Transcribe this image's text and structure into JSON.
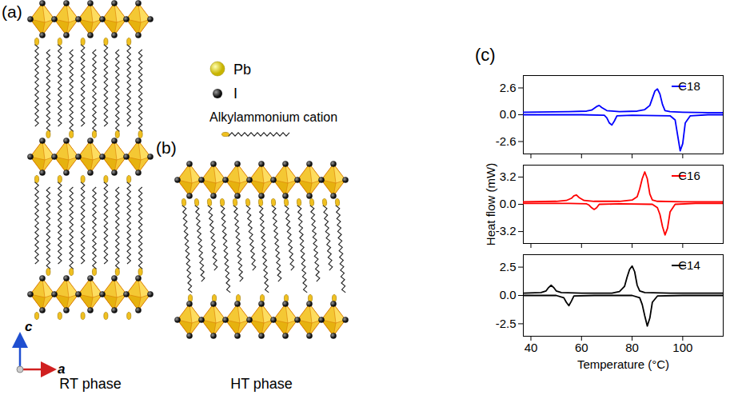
{
  "diagram": {
    "panels": [
      {
        "letter": "(a)",
        "caption": "RT phase"
      },
      {
        "letter": "(b)",
        "caption": "HT phase"
      }
    ],
    "legend": [
      {
        "label": "Pb"
      },
      {
        "label": "I"
      },
      {
        "label": "Alkylammonium cation"
      }
    ],
    "axes": {
      "vertical": "c",
      "horizontal": "a"
    }
  },
  "chart_panel": {
    "letter": "(c)"
  },
  "chart_data": [
    {
      "type": "line",
      "legend": "upper right",
      "tick_labels": "y",
      "xlim": [
        37,
        116
      ],
      "xticks": [
        40,
        60,
        80,
        100
      ],
      "ylim": [
        -3.8,
        3.8
      ],
      "yticks": [
        2.6,
        {
          "value": 0,
          "label": "0.0"
        },
        -2.6
      ],
      "series": [
        {
          "name": "C18",
          "color": "#0000ff",
          "x": [
            37,
            55,
            62,
            64,
            66,
            67,
            68,
            70,
            75,
            82,
            85,
            87,
            88,
            89,
            90,
            91,
            92,
            93,
            95,
            100,
            110,
            116,
            null,
            37,
            60,
            69,
            70,
            71,
            72,
            73,
            74,
            80,
            95,
            97,
            98,
            99,
            100,
            101,
            103,
            110,
            116
          ],
          "values": [
            0.25,
            0.3,
            0.35,
            0.45,
            0.8,
            0.9,
            0.7,
            0.4,
            0.3,
            0.35,
            0.5,
            0.9,
            1.6,
            2.3,
            2.5,
            2.0,
            1.0,
            0.4,
            0.3,
            0.25,
            0.2,
            0.2,
            null,
            0,
            0,
            -0.05,
            -0.3,
            -0.8,
            -1.0,
            -0.6,
            -0.1,
            -0.05,
            -0.1,
            -0.5,
            -2.0,
            -3.5,
            -2.8,
            -0.8,
            -0.1,
            0,
            0
          ]
        }
      ]
    },
    {
      "type": "line",
      "legend": "upper right",
      "tick_labels": "y",
      "y_label": "Heat flow (mW)",
      "xlim": [
        37,
        116
      ],
      "xticks": [
        40,
        60,
        80,
        100
      ],
      "ylim": [
        -4.6,
        4.6
      ],
      "yticks": [
        3.2,
        {
          "value": 0,
          "label": "0.0"
        },
        -3.2
      ],
      "series": [
        {
          "name": "C16",
          "color": "#ff0000",
          "x": [
            37,
            50,
            54,
            56,
            57,
            58,
            59,
            61,
            65,
            75,
            80,
            82,
            83,
            84,
            85,
            86,
            87,
            88,
            90,
            100,
            116,
            null,
            37,
            55,
            62,
            63,
            64,
            65,
            66,
            67,
            75,
            88,
            90,
            91,
            92,
            93,
            94,
            95,
            97,
            105,
            116
          ],
          "values": [
            0.3,
            0.35,
            0.45,
            0.7,
            1.0,
            1.1,
            0.8,
            0.45,
            0.35,
            0.35,
            0.5,
            0.9,
            1.8,
            3.0,
            3.8,
            3.0,
            1.2,
            0.5,
            0.35,
            0.3,
            0.3,
            null,
            0.1,
            0.1,
            0.05,
            -0.1,
            -0.4,
            -0.6,
            -0.4,
            0.0,
            0.05,
            0.0,
            -0.4,
            -1.2,
            -2.6,
            -3.6,
            -2.8,
            -0.9,
            0.0,
            0.1,
            0.1
          ]
        }
      ]
    },
    {
      "type": "line",
      "legend": "upper right",
      "x_label": "Temperature (°C)",
      "xlim": [
        37,
        116
      ],
      "xticks": [
        40,
        60,
        80,
        100
      ],
      "ylim": [
        -3.6,
        3.6
      ],
      "yticks": [
        2.5,
        {
          "value": 0,
          "label": "0.0"
        },
        -2.5
      ],
      "series": [
        {
          "name": "C14",
          "color": "#000000",
          "x": [
            37,
            44,
            46,
            47,
            48,
            49,
            50,
            52,
            60,
            72,
            75,
            77,
            78,
            79,
            80,
            81,
            82,
            83,
            85,
            95,
            116,
            null,
            37,
            50,
            53,
            54,
            55,
            56,
            57,
            65,
            80,
            83,
            84,
            85,
            86,
            87,
            88,
            90,
            100,
            116
          ],
          "values": [
            0.2,
            0.25,
            0.4,
            0.7,
            0.9,
            0.7,
            0.4,
            0.25,
            0.2,
            0.2,
            0.35,
            0.8,
            1.6,
            2.3,
            2.6,
            2.1,
            0.9,
            0.4,
            0.25,
            0.2,
            0.2,
            null,
            0,
            0,
            -0.2,
            -0.6,
            -0.9,
            -0.5,
            -0.05,
            0,
            0,
            -0.2,
            -0.8,
            -1.8,
            -2.7,
            -2.0,
            -0.6,
            -0.05,
            0,
            0
          ]
        }
      ]
    }
  ]
}
